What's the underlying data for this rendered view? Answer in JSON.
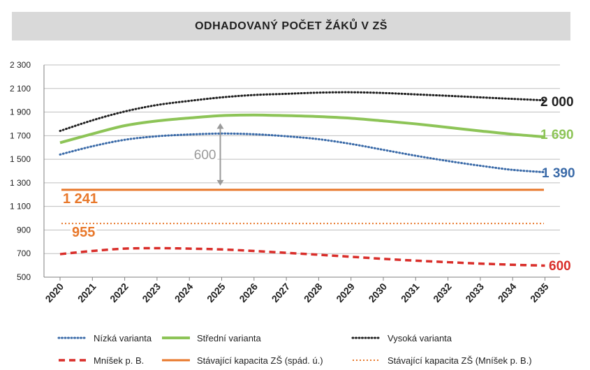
{
  "title": "ODHADOVANÝ POČET ŽÁKŮ V ZŠ",
  "chart_data": {
    "type": "line",
    "title": "ODHADOVANÝ POČET ŽÁKŮ V ZŠ",
    "xlabel": "",
    "ylabel": "",
    "x": [
      "2020",
      "2021",
      "2022",
      "2023",
      "2024",
      "2025",
      "2026",
      "2027",
      "2028",
      "2029",
      "2030",
      "2031",
      "2032",
      "2033",
      "2034",
      "2035"
    ],
    "ylim": [
      500,
      2300
    ],
    "yticks": [
      500,
      700,
      900,
      1100,
      1300,
      1500,
      1700,
      1900,
      2100,
      2300
    ],
    "ytick_labels": [
      "500",
      "700",
      "900",
      "1 100",
      "1 300",
      "1 500",
      "1 700",
      "1 900",
      "2 100",
      "2 300"
    ],
    "grid": true,
    "legend_position": "bottom",
    "series": [
      {
        "key": "nizka",
        "name": "Nízká varianta",
        "color": "#3a6aa8",
        "style": "dotted",
        "values": [
          1540,
          1610,
          1665,
          1695,
          1710,
          1718,
          1712,
          1695,
          1670,
          1630,
          1580,
          1530,
          1485,
          1445,
          1410,
          1390
        ],
        "end_label": "1 390"
      },
      {
        "key": "stredni",
        "name": "Střední varianta",
        "color": "#8dc457",
        "style": "solid",
        "values": [
          1640,
          1715,
          1785,
          1825,
          1850,
          1870,
          1875,
          1870,
          1862,
          1848,
          1825,
          1800,
          1770,
          1740,
          1712,
          1690
        ],
        "end_label": "1 690"
      },
      {
        "key": "vysoka",
        "name": "Vysoká varianta",
        "color": "#1f1f1f",
        "style": "dotted",
        "values": [
          1740,
          1830,
          1905,
          1960,
          1995,
          2025,
          2045,
          2055,
          2065,
          2068,
          2062,
          2050,
          2038,
          2025,
          2012,
          2000
        ],
        "end_label": "2 000"
      },
      {
        "key": "mnisek",
        "name": "Mníšek p. B.",
        "color": "#d92e2a",
        "style": "dashed",
        "values": [
          695,
          722,
          742,
          746,
          742,
          735,
          722,
          706,
          690,
          673,
          655,
          640,
          627,
          615,
          605,
          598
        ],
        "end_label": "600"
      },
      {
        "key": "kap_spad",
        "name": "Stávající kapacita ZŠ (spád. ú.)",
        "color": "#e8782b",
        "style": "solid",
        "values": [
          1241,
          1241,
          1241,
          1241,
          1241,
          1241,
          1241,
          1241,
          1241,
          1241,
          1241,
          1241,
          1241,
          1241,
          1241,
          1241
        ],
        "start_label": "1 241"
      },
      {
        "key": "kap_mnisek",
        "name": "Stávající kapacita ZŠ (Mníšek p. B.)",
        "color": "#e8782b",
        "style": "dotted",
        "values": [
          955,
          955,
          955,
          955,
          955,
          955,
          955,
          955,
          955,
          955,
          955,
          955,
          955,
          955,
          955,
          955
        ],
        "start_label": "955"
      }
    ],
    "annotations": [
      {
        "type": "arrow",
        "label": "600",
        "x": "2025",
        "from": 1241,
        "to": 1841,
        "color": "#9a9a9a"
      }
    ]
  }
}
